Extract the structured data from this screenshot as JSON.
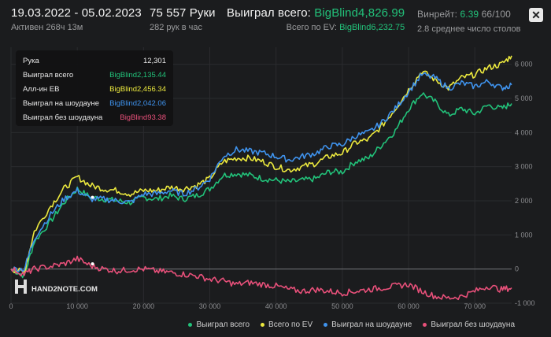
{
  "header": {
    "date_range": "19.03.2022 - 05.02.2023",
    "active": "Активен 268ч 13м",
    "hands": "75 557 Руки",
    "hands_per_hour": "282 рук в час",
    "won_label": "Выиграл всего:",
    "won_value": "BigBlind4,826.99",
    "ev_label": "Всего по EV:",
    "ev_value": "BigBlind6,232.75",
    "winrate_label": "Винрейт:",
    "winrate_value": "6.39",
    "winrate_unit": "66/100",
    "tables": "2.8 среднее число столов",
    "close_glyph": "✕"
  },
  "tooltip": {
    "rows": [
      {
        "label": "Рука",
        "value": "12,301",
        "color": "#e8e8e8"
      },
      {
        "label": "Выиграл всего",
        "value": "BigBlind2,135.44",
        "color": "#22c27a"
      },
      {
        "label": "Алл-ин EB",
        "value": "BigBlind2,456.34",
        "color": "#ece93e"
      },
      {
        "label": "Выиграл на шоудауне",
        "value": "BigBlind2,042.06",
        "color": "#3f93ee"
      },
      {
        "label": "Выиграл без шоудауна",
        "value": "BigBlind93.38",
        "color": "#e8507a"
      }
    ]
  },
  "watermark": "HAND2NOTE.COM",
  "chart_data": {
    "type": "line",
    "x_ticks": [
      "0",
      "10 000",
      "20 000",
      "30 000",
      "40 000",
      "50 000",
      "60 000",
      "70 000"
    ],
    "y_ticks": [
      "6 000",
      "5 000",
      "4 000",
      "3 000",
      "2 000",
      "1 000",
      "0",
      "-1 000"
    ],
    "x_range": [
      0,
      75557
    ],
    "y_range": [
      -1000,
      6500
    ],
    "legend_position": "bottom-right",
    "hover_x": 12301,
    "series": [
      {
        "name": "Выиграл всего",
        "color": "#22c27a",
        "x": [
          0,
          2000,
          3500,
          6000,
          8000,
          10000,
          12000,
          14000,
          16000,
          18000,
          20000,
          22000,
          24000,
          26000,
          28000,
          30000,
          32000,
          34000,
          36000,
          38000,
          40000,
          42000,
          44000,
          46000,
          48000,
          50000,
          52000,
          54000,
          56000,
          58000,
          60000,
          62000,
          64000,
          66000,
          68000,
          70000,
          72000,
          74000,
          75557
        ],
        "values": [
          0,
          -200,
          800,
          1400,
          1950,
          2350,
          2100,
          2050,
          2000,
          1950,
          2100,
          2050,
          2150,
          2050,
          2150,
          2350,
          2750,
          2800,
          2750,
          2650,
          2600,
          2550,
          2600,
          2650,
          2850,
          2850,
          3150,
          3250,
          3650,
          4050,
          4700,
          5150,
          4900,
          4500,
          4700,
          4550,
          4800,
          4700,
          4850
        ]
      },
      {
        "name": "Всего по EV",
        "color": "#ece93e",
        "x": [
          0,
          2000,
          3500,
          6000,
          8000,
          10000,
          12000,
          14000,
          16000,
          18000,
          20000,
          22000,
          24000,
          26000,
          28000,
          30000,
          32000,
          34000,
          36000,
          38000,
          40000,
          42000,
          44000,
          46000,
          48000,
          50000,
          52000,
          54000,
          56000,
          58000,
          60000,
          62000,
          64000,
          66000,
          68000,
          70000,
          72000,
          74000,
          75557
        ],
        "values": [
          0,
          -100,
          1100,
          1850,
          2350,
          2700,
          2450,
          2350,
          2300,
          2200,
          2300,
          2300,
          2400,
          2350,
          2450,
          2650,
          3150,
          3250,
          3250,
          3150,
          3000,
          2900,
          3000,
          3100,
          3300,
          3400,
          3700,
          3800,
          4200,
          4700,
          5250,
          5800,
          5550,
          5300,
          5600,
          5700,
          5900,
          6000,
          6250
        ]
      },
      {
        "name": "Выиграл на шоудауне",
        "color": "#3f93ee",
        "x": [
          0,
          2000,
          3500,
          6000,
          8000,
          10000,
          12000,
          14000,
          16000,
          18000,
          20000,
          22000,
          24000,
          26000,
          28000,
          30000,
          32000,
          34000,
          36000,
          38000,
          40000,
          42000,
          44000,
          46000,
          48000,
          50000,
          52000,
          54000,
          56000,
          58000,
          60000,
          62000,
          64000,
          66000,
          68000,
          70000,
          72000,
          74000,
          75557
        ],
        "values": [
          0,
          0,
          900,
          1600,
          2050,
          2300,
          2050,
          2050,
          2000,
          1950,
          2200,
          2200,
          2300,
          2200,
          2350,
          2650,
          3300,
          3500,
          3450,
          3400,
          3300,
          3200,
          3300,
          3400,
          3600,
          3650,
          3900,
          4000,
          4300,
          4700,
          5200,
          5700,
          5600,
          5300,
          5450,
          5350,
          5500,
          5300,
          5400
        ]
      },
      {
        "name": "Выиграл без шоудауна",
        "color": "#e8507a",
        "x": [
          0,
          2000,
          3500,
          6000,
          8000,
          10000,
          12000,
          14000,
          16000,
          18000,
          20000,
          22000,
          24000,
          26000,
          28000,
          30000,
          32000,
          34000,
          36000,
          38000,
          40000,
          42000,
          44000,
          46000,
          48000,
          50000,
          52000,
          54000,
          56000,
          58000,
          60000,
          62000,
          64000,
          66000,
          68000,
          70000,
          72000,
          74000,
          75557
        ],
        "values": [
          0,
          -150,
          0,
          80,
          150,
          300,
          100,
          0,
          -50,
          -20,
          0,
          -60,
          -100,
          -150,
          -200,
          -300,
          -350,
          -450,
          -400,
          -450,
          -500,
          -600,
          -650,
          -600,
          -650,
          -700,
          -650,
          -600,
          -550,
          -500,
          -450,
          -650,
          -800,
          -850,
          -800,
          -650,
          -500,
          -600,
          -550
        ]
      }
    ]
  }
}
